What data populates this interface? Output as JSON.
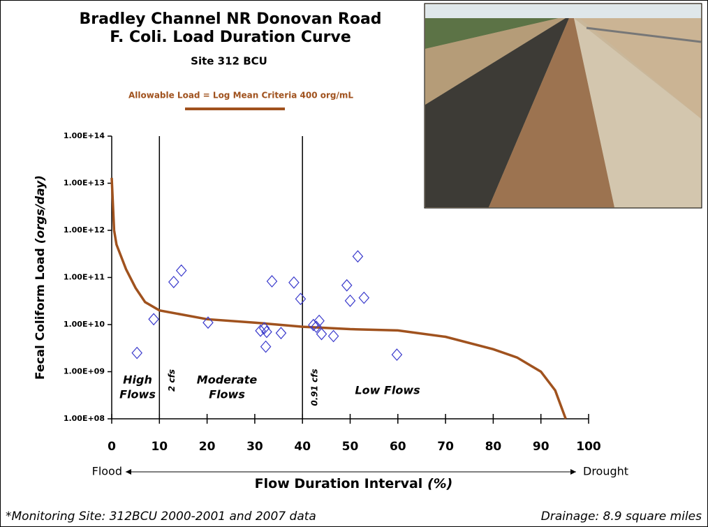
{
  "chart_data": {
    "type": "line",
    "title": [
      "Bradley Channel NR Donovan Road",
      "F. Coli. Load Duration Curve"
    ],
    "subtitle": "Site 312 BCU",
    "x_label": "Flow Duration Interval",
    "x_label_unit": "(%)",
    "y_label": "Fecal Coliform Load",
    "y_label_unit": "(orgs/day)",
    "xlim": [
      0,
      100
    ],
    "xticks": [
      0,
      10,
      20,
      30,
      40,
      50,
      60,
      70,
      80,
      90,
      100
    ],
    "ylim": [
      100000000,
      100000000000000
    ],
    "yscale": "log",
    "yticks": [
      {
        "value": 100000000,
        "label": "1.00E+08"
      },
      {
        "value": 1000000000,
        "label": "1.00E+09"
      },
      {
        "value": 10000000000,
        "label": "1.00E+10"
      },
      {
        "value": 100000000000,
        "label": "1.00E+11"
      },
      {
        "value": 1000000000000,
        "label": "1.00E+12"
      },
      {
        "value": 10000000000000,
        "label": "1.00E+13"
      },
      {
        "value": 100000000000000,
        "label": "1.00E+14"
      }
    ],
    "series": [
      {
        "name": "Allowable Load = Log Mean Criteria 400 org/mL",
        "type": "line",
        "color": "#a0521e",
        "x": [
          0,
          0.5,
          1,
          3,
          5,
          7,
          10,
          20,
          30,
          40,
          50,
          60,
          70,
          80,
          85,
          90,
          93,
          95.2
        ],
        "values": [
          13000000000000,
          1000000000000,
          500000000000,
          150000000000,
          60000000000,
          30000000000,
          20000000000,
          13000000000,
          11000000000,
          9000000000,
          8000000000,
          7500000000,
          5500000000,
          3000000000,
          2000000000,
          1000000000,
          400000000,
          100000000
        ]
      },
      {
        "type": "scatter",
        "color": "#3a3acc",
        "x": [
          5.3,
          8.8,
          13,
          14.6,
          20.2,
          31.2,
          32,
          32.3,
          32.5,
          33.6,
          35.5,
          38.2,
          39.6,
          42.3,
          42.9,
          43.5,
          44,
          46.5,
          49.3,
          50,
          51.6,
          52.9,
          59.8
        ],
        "values": [
          2500000000,
          13000000000,
          80000000000,
          140000000000,
          11000000000,
          7400000000,
          8400000000,
          3400000000,
          7000000000,
          83000000000,
          6600000000,
          78000000000,
          35000000000,
          9800000000,
          9000000000,
          12000000000,
          6300000000,
          5700000000,
          68000000000,
          32000000000,
          280000000000,
          37000000000,
          2300000000
        ]
      }
    ],
    "vlines": [
      {
        "x": 10,
        "label": "2 cfs"
      },
      {
        "x": 40,
        "label": "0.91 cfs"
      }
    ],
    "regions": [
      {
        "lines": [
          "High",
          "Flows"
        ]
      },
      {
        "lines": [
          "Moderate",
          "Flows"
        ]
      },
      {
        "lines": [
          "Low Flows"
        ]
      }
    ],
    "direction": [
      "Flood",
      "Drought"
    ],
    "footer": [
      "*Monitoring Site: 312BCU 2000-2001 and 2007 data",
      "Drainage: 8.9 square miles"
    ]
  }
}
